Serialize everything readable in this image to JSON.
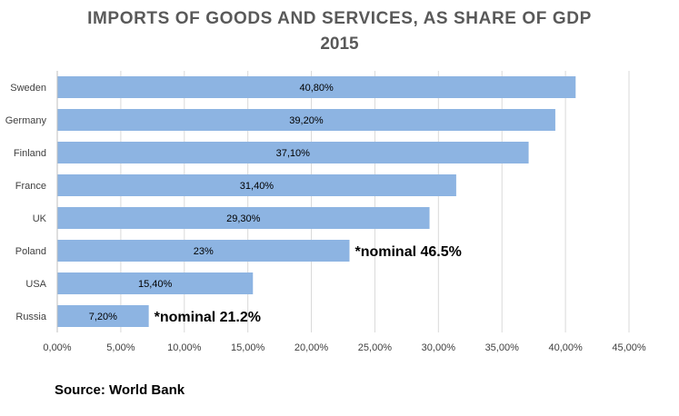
{
  "chart_data": {
    "type": "bar",
    "orientation": "horizontal",
    "title": "IMPORTS OF GOODS AND SERVICES, AS SHARE OF GDP",
    "subtitle": "2015",
    "categories": [
      "Sweden",
      "Germany",
      "Finland",
      "France",
      "UK",
      "Poland",
      "USA",
      "Russia"
    ],
    "values": [
      40.8,
      39.2,
      37.1,
      31.4,
      29.3,
      23,
      15.4,
      7.2
    ],
    "value_labels": [
      "40,80%",
      "39,20%",
      "37,10%",
      "31,40%",
      "29,30%",
      "23%",
      "15,40%",
      "7,20%"
    ],
    "annotations": [
      {
        "category": "Poland",
        "text": "*nominal 46.5%"
      },
      {
        "category": "Russia",
        "text": "*nominal 21.2%"
      }
    ],
    "x_ticks": [
      "0,00%",
      "5,00%",
      "10,00%",
      "15,00%",
      "20,00%",
      "25,00%",
      "30,00%",
      "35,00%",
      "40,00%",
      "45,00%"
    ],
    "xlim": [
      0,
      45
    ],
    "grid": true,
    "xlabel": "",
    "ylabel": "",
    "bar_color": "#8DB4E2",
    "grid_color": "#D9D9D9"
  },
  "source": "Source: World Bank"
}
